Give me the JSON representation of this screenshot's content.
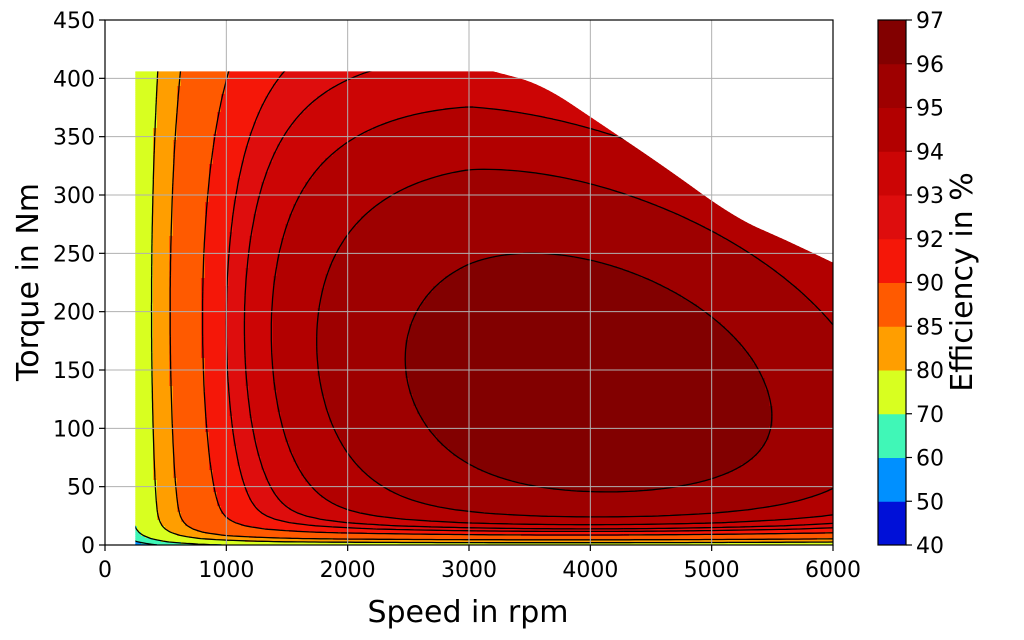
{
  "chart_data": {
    "type": "contour",
    "xlabel": "Speed in rpm",
    "ylabel": "Torque in Nm",
    "colorbar_label": "Efficiency in %",
    "xlim": [
      0,
      6000
    ],
    "ylim": [
      0,
      450
    ],
    "x_ticks": [
      "0",
      "1000",
      "2000",
      "3000",
      "4000",
      "5000",
      "6000"
    ],
    "y_ticks": [
      "0",
      "50",
      "100",
      "150",
      "200",
      "250",
      "300",
      "350",
      "400",
      "450"
    ],
    "grid": true,
    "levels": [
      40,
      50,
      60,
      70,
      80,
      85,
      90,
      92,
      93,
      94,
      95,
      96,
      97
    ],
    "colorbar_ticks": [
      "40",
      "50",
      "60",
      "70",
      "80",
      "85",
      "90",
      "92",
      "93",
      "94",
      "95",
      "96",
      "97"
    ],
    "band_colors": [
      "#0010d8",
      "#0090ff",
      "#40f7b7",
      "#d8ff20",
      "#ff9e00",
      "#ff5a00",
      "#f51708",
      "#de0d0d",
      "#cc0505",
      "#b20000",
      "#9e0000",
      "#820000"
    ],
    "domain": {
      "speed_min": 250,
      "max_torque": [
        [
          250,
          406
        ],
        [
          3200,
          406
        ],
        [
          3600,
          395
        ],
        [
          4100,
          360
        ],
        [
          4600,
          325
        ],
        [
          5200,
          280
        ],
        [
          5600,
          262
        ],
        [
          6000,
          242
        ]
      ]
    },
    "peak_efficiency": {
      "speed": 4000,
      "torque": 125
    }
  }
}
